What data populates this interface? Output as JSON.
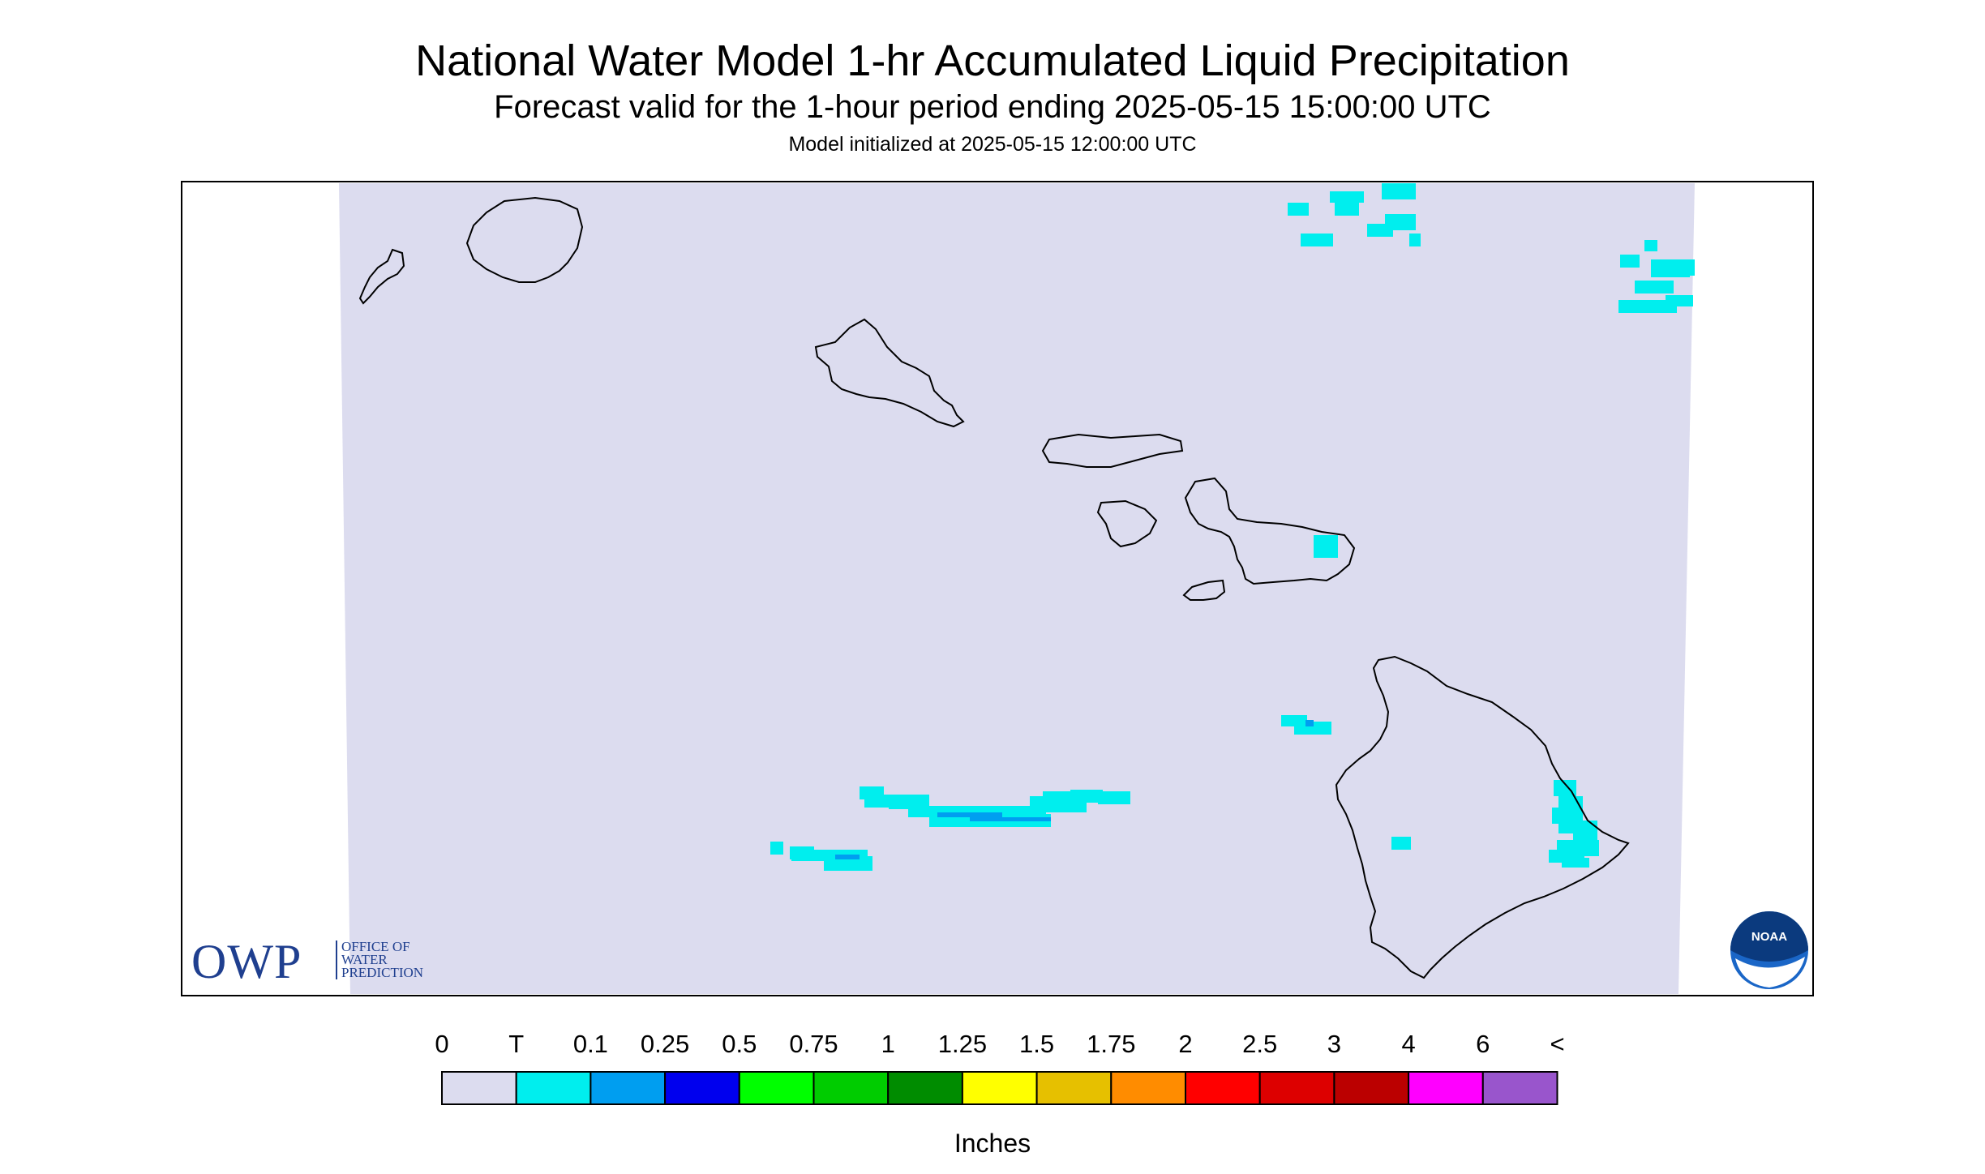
{
  "header": {
    "title": "National Water Model 1-hr Accumulated Liquid Precipitation",
    "subtitle": "Forecast valid for the 1-hour period ending 2025-05-15 15:00:00 UTC",
    "init_line": "Model initialized at 2025-05-15 12:00:00 UTC"
  },
  "legend": {
    "units": "Inches",
    "labels": [
      "0",
      "T",
      "0.1",
      "0.25",
      "0.5",
      "0.75",
      "1",
      "1.25",
      "1.5",
      "1.75",
      "2",
      "2.5",
      "3",
      "4",
      "6",
      "<"
    ],
    "colors": [
      "#dcdcef",
      "#00eeee",
      "#009ef0",
      "#0000ee",
      "#00ff00",
      "#00cc00",
      "#008c00",
      "#ffff00",
      "#e6c000",
      "#ff8c00",
      "#ff0000",
      "#dd0000",
      "#bb0000",
      "#ff00ff",
      "#9955cc"
    ]
  },
  "map": {
    "background_color": "#dcdcef",
    "coastline_color": "#000000",
    "precip_light_color": "#00eeee",
    "precip_moderate_color": "#009ef0"
  },
  "logos": {
    "owp_word": "OWP",
    "owp_line1": "OFFICE OF",
    "owp_line2": "WATER",
    "owp_line3": "PREDICTION",
    "noaa": "NOAA"
  }
}
